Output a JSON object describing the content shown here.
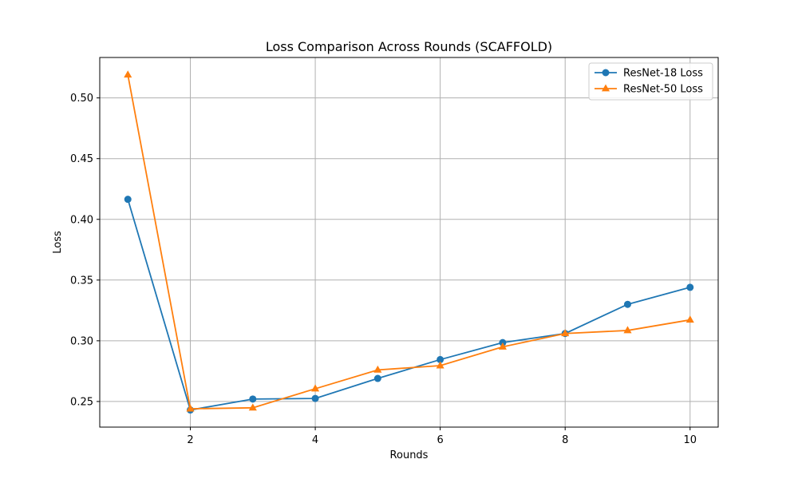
{
  "chart_data": {
    "type": "line",
    "title": "Loss Comparison Across Rounds (SCAFFOLD)",
    "xlabel": "Rounds",
    "ylabel": "Loss",
    "xlim": [
      0.55,
      10.45
    ],
    "ylim": [
      0.2289,
      0.5333
    ],
    "xticks": [
      2,
      4,
      6,
      8,
      10
    ],
    "yticks": [
      0.25,
      0.3,
      0.35,
      0.4,
      0.45,
      0.5
    ],
    "grid": true,
    "legend_position": "top-right",
    "x": [
      1,
      2,
      3,
      4,
      5,
      6,
      7,
      8,
      9,
      10
    ],
    "series": [
      {
        "name": "ResNet-18 Loss",
        "color": "#1f77b4",
        "marker": "circle",
        "values": [
          0.4165,
          0.243,
          0.252,
          0.2525,
          0.269,
          0.2845,
          0.2985,
          0.306,
          0.33,
          0.344
        ]
      },
      {
        "name": "ResNet-50 Loss",
        "color": "#ff7f0e",
        "marker": "triangle",
        "values": [
          0.519,
          0.244,
          0.2448,
          0.2605,
          0.276,
          0.2795,
          0.295,
          0.306,
          0.3085,
          0.3172
        ]
      }
    ]
  }
}
